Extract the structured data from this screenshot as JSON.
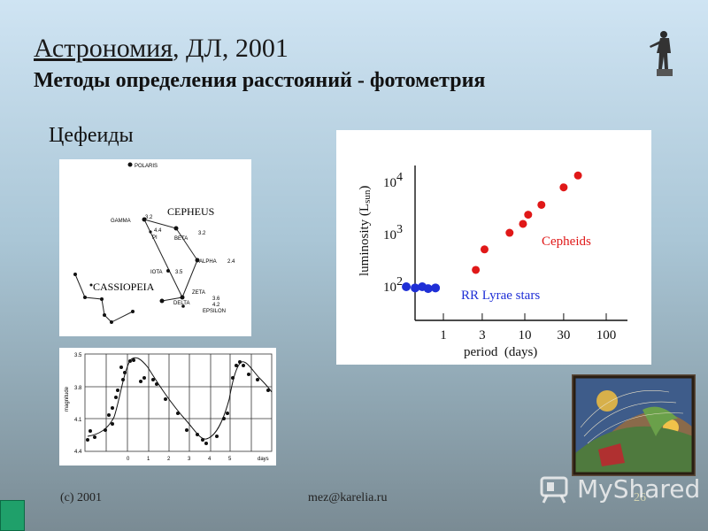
{
  "header": {
    "title_main": "Астрономия",
    "title_rest": ", ДЛ, 2001",
    "subtitle": "Методы определения расстояний - фотометрия"
  },
  "section_title": "Цефеиды",
  "star_map": {
    "labels": {
      "polaris": "POLARIS",
      "cepheus": "CEPHEUS",
      "cassiopeia": "CASSIOPEIA",
      "gamma": "GAMMA",
      "gamma_mag": "3.2",
      "pi": "PI",
      "pi_mag": "4.4",
      "beta": "BETA",
      "beta_mag": "3.2",
      "alpha": "ALPHA",
      "alpha_mag": "2.4",
      "iota": "IOTA",
      "iota_mag": "3.5",
      "zeta": "ZETA",
      "delta": "DELTA",
      "delta_mag": "3.6",
      "delta_mag2": "4.2",
      "epsilon": "EPSILON"
    }
  },
  "light_curve": {
    "ylabel": "magnitude",
    "yticks": [
      "3.5",
      "3.8",
      "4.1",
      "4.4"
    ],
    "xticks": [
      "0",
      "1",
      "2",
      "3",
      "4",
      "5"
    ],
    "xunit": "days"
  },
  "chart_data": {
    "type": "scatter",
    "xlabel": "period  (days)",
    "ylabel": "luminosity (Lsun)",
    "x_scale": "log",
    "y_scale": "log",
    "xticks": [
      "1",
      "3",
      "10",
      "30",
      "100"
    ],
    "yticks": [
      "10^2",
      "10^3",
      "10^4"
    ],
    "series": [
      {
        "name": "RR Lyrae stars",
        "color": "#1f2fd6",
        "points": [
          [
            0.35,
            100
          ],
          [
            0.45,
            95
          ],
          [
            0.55,
            100
          ],
          [
            0.65,
            92
          ],
          [
            0.8,
            95
          ]
        ]
      },
      {
        "name": "Cepheids",
        "color": "#e01818",
        "points": [
          [
            2.5,
            210
          ],
          [
            3.2,
            520
          ],
          [
            6.5,
            1080
          ],
          [
            9.5,
            1600
          ],
          [
            11,
            2400
          ],
          [
            16,
            3700
          ],
          [
            30,
            8000
          ],
          [
            45,
            13500
          ]
        ]
      }
    ]
  },
  "footer": {
    "copyright": "(c) 2001",
    "email": "mez@karelia.ru",
    "page": "26"
  },
  "watermark": "MyShared"
}
